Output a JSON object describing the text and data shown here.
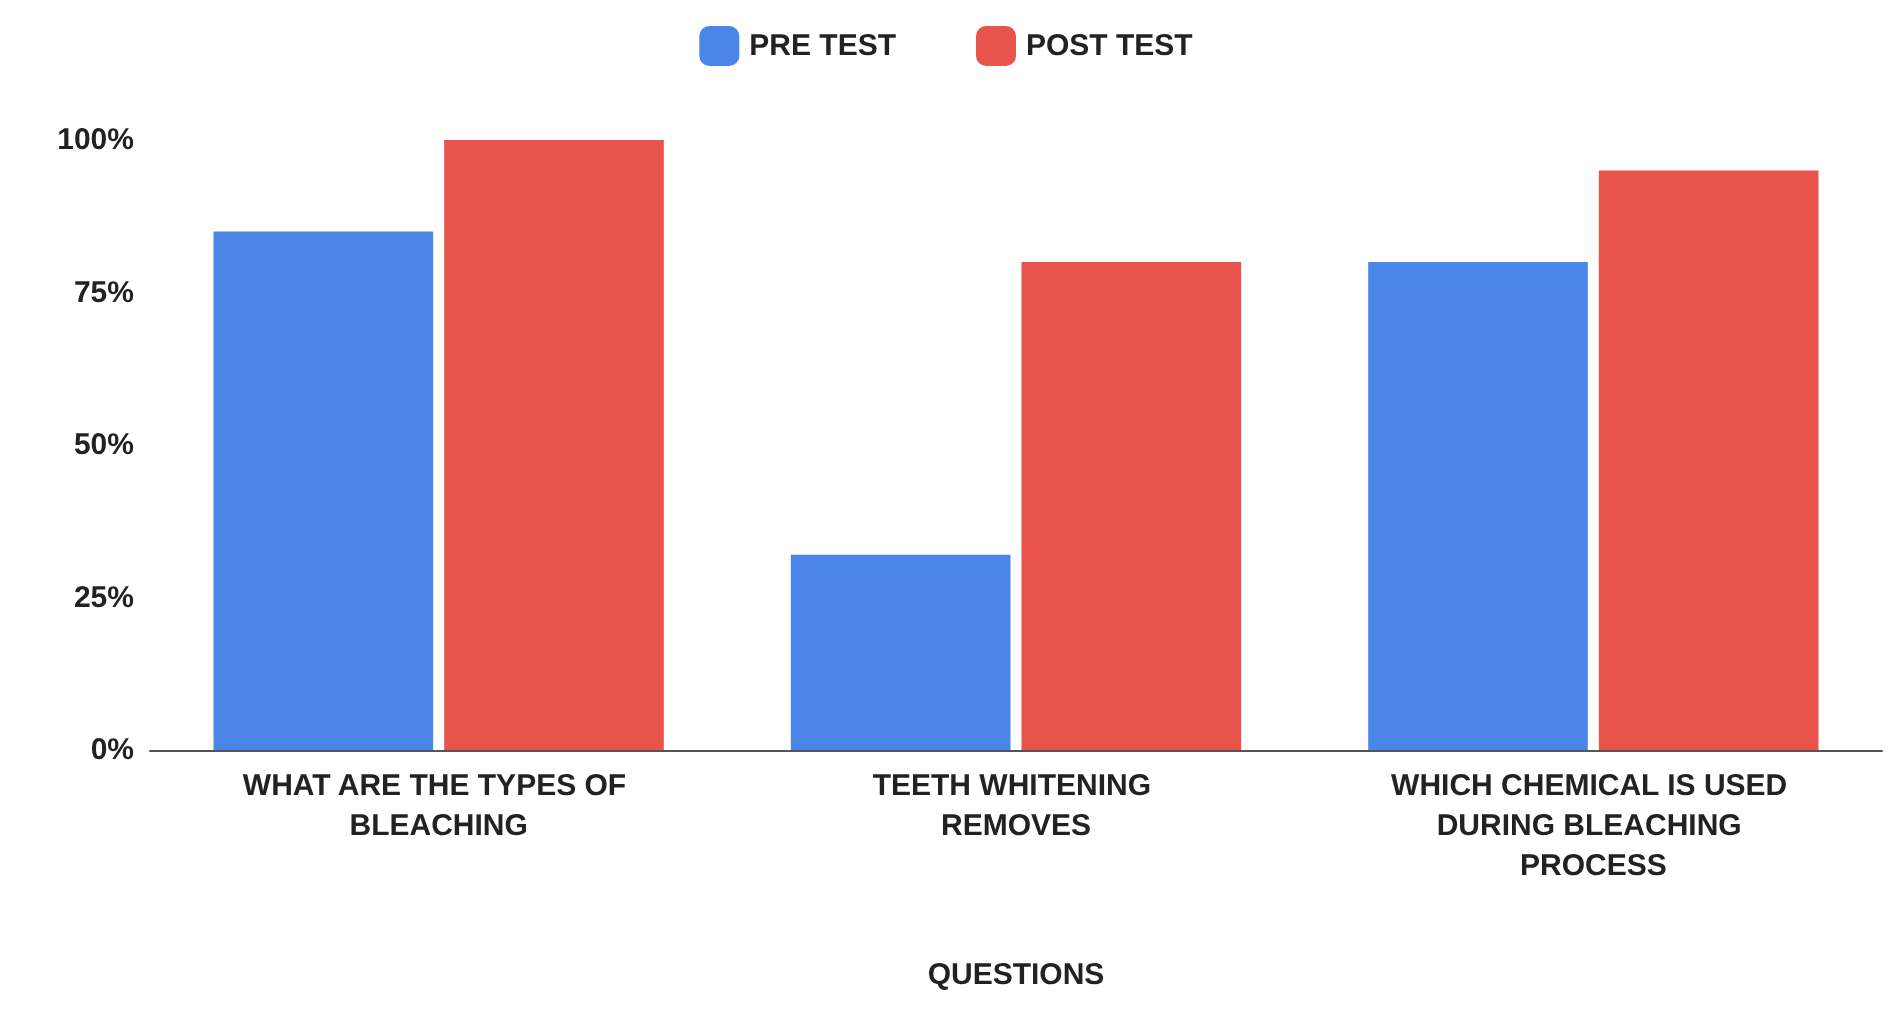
{
  "chart_data": {
    "type": "bar",
    "xlabel": "QUESTIONS",
    "categories": [
      "WHAT ARE THE TYPES OF BLEACHING",
      "TEETH WHITENING REMOVES",
      "WHICH CHEMICAL IS USED DURING BLEACHING PROCESS"
    ],
    "series": [
      {
        "name": "PRE TEST",
        "color": "#4a86e8",
        "values": [
          85,
          32,
          80
        ]
      },
      {
        "name": "POST TEST",
        "color": "#e8534b",
        "values": [
          100,
          80,
          95
        ]
      }
    ],
    "ylim": [
      0,
      100
    ],
    "yticks": [
      {
        "value": 0,
        "label": "0%"
      },
      {
        "value": 25,
        "label": "25%"
      },
      {
        "value": 50,
        "label": "50%"
      },
      {
        "value": 75,
        "label": "75%"
      },
      {
        "value": 100,
        "label": "100%"
      }
    ],
    "grid": false,
    "legend": "top"
  }
}
